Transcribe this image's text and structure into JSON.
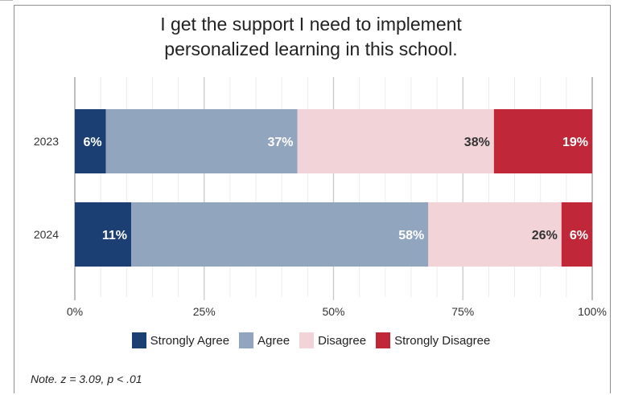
{
  "title_lines": [
    "I get the support I need to implement",
    "personalized learning in this school."
  ],
  "note": "Note. z = 3.09, p < .01",
  "chart_data": {
    "type": "bar",
    "orientation": "horizontal",
    "stacked": true,
    "normalized": true,
    "categories": [
      "2023",
      "2024"
    ],
    "series": [
      {
        "name": "Strongly Agree",
        "color": "#1b3f73",
        "values": [
          6,
          11
        ],
        "labels": [
          "6%",
          "11%"
        ],
        "label_color": "#ffffff"
      },
      {
        "name": "Agree",
        "color": "#91a5be",
        "values": [
          37,
          58
        ],
        "labels": [
          "37%",
          "58%"
        ],
        "label_color": "#ffffff"
      },
      {
        "name": "Disagree",
        "color": "#f2d3d8",
        "values": [
          38,
          26
        ],
        "labels": [
          "38%",
          "26%"
        ],
        "label_color": "#333333"
      },
      {
        "name": "Strongly Disagree",
        "color": "#c0283a",
        "values": [
          19,
          6
        ],
        "labels": [
          "19%",
          "6%"
        ],
        "label_color": "#ffffff"
      }
    ],
    "xlim": [
      0,
      100
    ],
    "xticks": [
      0,
      25,
      50,
      75,
      100
    ],
    "xtick_labels": [
      "0%",
      "25%",
      "50%",
      "75%",
      "100%"
    ],
    "grid": true,
    "legend_position": "bottom"
  }
}
